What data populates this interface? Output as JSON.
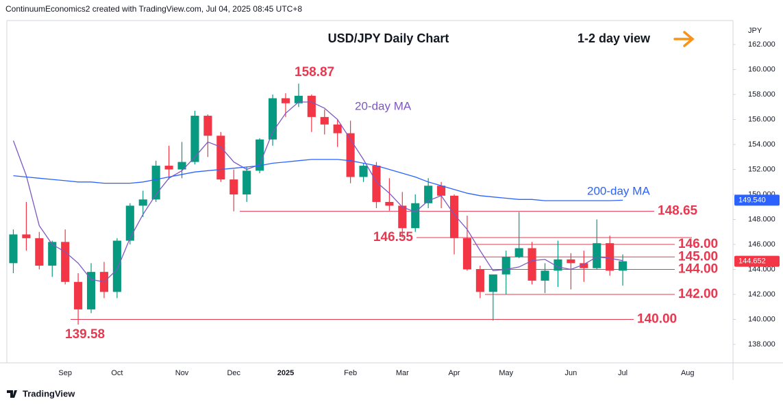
{
  "header": "ContinuumEconomics2 created with TradingView.com, Jul 04, 2025 08:45 UTC+8",
  "footer": "TradingView",
  "chart_data": {
    "type": "candlestick",
    "title": "USD/JPY Daily Chart",
    "subtitle": "1-2 day view",
    "y_axis_label": "JPY",
    "categories": [
      null,
      null,
      null,
      null,
      "Sep",
      null,
      null,
      null,
      "Oct",
      null,
      null,
      null,
      null,
      "Nov",
      null,
      null,
      null,
      "Dec",
      null,
      null,
      null,
      "2025",
      null,
      null,
      null,
      null,
      "Feb",
      null,
      null,
      null,
      "Mar",
      null,
      null,
      null,
      "Apr",
      null,
      null,
      null,
      "May",
      null,
      null,
      null,
      null,
      "Jun",
      null,
      null,
      null,
      "Jul",
      null,
      null,
      null,
      null,
      "Aug",
      null,
      null,
      null
    ],
    "open": [
      144.5,
      146.8,
      146.5,
      144.3,
      146.2,
      143.0,
      140.8,
      143.8,
      142.2,
      146.3,
      149.1,
      149.6,
      152.3,
      152.0,
      152.6,
      156.3,
      154.7,
      151.2,
      150.0,
      151.9,
      154.4,
      157.7,
      157.3,
      157.9,
      156.2,
      155.6,
      154.9,
      151.4,
      152.3,
      149.4,
      149.1,
      147.3,
      149.3,
      150.7,
      149.9,
      146.5,
      144.0,
      142.2,
      143.6,
      145.0,
      145.7,
      143.1,
      143.9,
      144.8,
      144.5,
      144.1,
      146.1,
      143.9,
      null,
      null,
      null,
      null,
      null,
      null,
      null,
      null
    ],
    "high": [
      147.2,
      149.4,
      147.0,
      146.3,
      147.2,
      143.7,
      144.5,
      144.6,
      146.5,
      149.3,
      150.3,
      152.7,
      153.9,
      154.2,
      156.7,
      156.4,
      155.0,
      152.0,
      152.2,
      154.5,
      158.0,
      158.1,
      158.87,
      158.0,
      156.8,
      156.0,
      155.9,
      152.5,
      152.6,
      151.3,
      150.2,
      150.0,
      151.3,
      151.0,
      150.0,
      148.3,
      144.3,
      143.5,
      145.5,
      148.6,
      146.2,
      144.5,
      146.3,
      145.3,
      145.5,
      148.0,
      146.7,
      145.2,
      null,
      null,
      null,
      null,
      null,
      null,
      null,
      null
    ],
    "low": [
      143.7,
      145.5,
      144.0,
      143.4,
      142.8,
      139.58,
      140.5,
      141.7,
      141.7,
      146.0,
      148.2,
      149.4,
      151.2,
      151.3,
      152.4,
      153.0,
      151.0,
      148.65,
      149.4,
      151.7,
      153.9,
      156.2,
      157.0,
      155.0,
      154.8,
      153.8,
      150.9,
      151.0,
      148.9,
      148.7,
      146.55,
      147.0,
      148.9,
      148.9,
      145.2,
      143.9,
      141.7,
      139.9,
      142.0,
      144.9,
      142.8,
      142.1,
      142.6,
      142.4,
      143.0,
      144.0,
      143.5,
      142.7,
      null,
      null,
      null,
      null,
      null,
      null,
      null,
      null
    ],
    "close": [
      146.8,
      146.5,
      144.3,
      146.2,
      143.0,
      140.8,
      143.8,
      142.2,
      146.3,
      149.1,
      149.6,
      152.3,
      152.0,
      152.6,
      156.3,
      154.7,
      151.2,
      150.0,
      151.9,
      154.4,
      157.7,
      157.3,
      157.9,
      156.2,
      155.6,
      154.9,
      151.4,
      152.3,
      149.4,
      149.1,
      147.3,
      149.3,
      150.7,
      149.9,
      146.5,
      144.0,
      142.2,
      143.6,
      145.0,
      145.7,
      143.1,
      143.9,
      144.8,
      144.5,
      144.1,
      146.1,
      143.9,
      144.652,
      null,
      null,
      null,
      null,
      null,
      null,
      null,
      null
    ],
    "up_color": "#089981",
    "down_color": "#f23645",
    "series": [
      {
        "name": "20-day MA",
        "color": "#7e57c2",
        "values": [
          154.3,
          151.5,
          147.5,
          146.0,
          145.4,
          144.5,
          143.2,
          143.0,
          144.0,
          146.5,
          148.4,
          150.0,
          151.3,
          151.9,
          153.0,
          154.2,
          153.8,
          152.6,
          152.0,
          152.4,
          155.0,
          156.5,
          157.4,
          157.4,
          156.9,
          156.0,
          154.4,
          152.8,
          151.0,
          150.1,
          149.0,
          148.6,
          149.5,
          149.9,
          148.4,
          147.2,
          145.5,
          143.9,
          144.0,
          144.2,
          144.7,
          144.8,
          144.2,
          144.0,
          144.4,
          145.0,
          144.9,
          144.7,
          null,
          null,
          null,
          null,
          null,
          null,
          null,
          null
        ]
      },
      {
        "name": "200-day MA",
        "color": "#2962ff",
        "values": [
          151.5,
          151.4,
          151.3,
          151.2,
          151.1,
          151.0,
          151.0,
          150.9,
          150.9,
          150.9,
          151.0,
          151.2,
          151.4,
          151.6,
          151.8,
          151.9,
          152.0,
          152.1,
          152.2,
          152.3,
          152.5,
          152.6,
          152.7,
          152.8,
          152.8,
          152.8,
          152.7,
          152.5,
          152.3,
          152.0,
          151.7,
          151.4,
          151.0,
          150.7,
          150.4,
          150.1,
          149.9,
          149.8,
          149.7,
          149.6,
          149.6,
          149.5,
          149.5,
          149.5,
          149.5,
          149.5,
          149.5,
          149.54,
          null,
          null,
          null,
          null,
          null,
          null,
          null,
          null
        ]
      }
    ],
    "levels": [
      {
        "value": 148.65,
        "label": "148.65"
      },
      {
        "value": 146.55,
        "label": "146.55"
      },
      {
        "value": 146,
        "label": "146.00"
      },
      {
        "value": 145,
        "label": "145.00"
      },
      {
        "value": 144,
        "label": "144.00"
      },
      {
        "value": 142,
        "label": "142.00"
      },
      {
        "value": 140,
        "label": "140.00"
      }
    ],
    "extremes": [
      158.87,
      139.58
    ],
    "price_markers": [
      {
        "value": 149.54,
        "label": "149.540"
      },
      144.652
    ],
    "ylim": [
      136.52,
      163.92
    ],
    "yticks": [
      {
        "value": 138,
        "label": "138.000"
      },
      {
        "value": 140,
        "label": "140.000"
      },
      {
        "value": 142,
        "label": "142.000"
      },
      {
        "value": 144,
        "label": "144.000"
      },
      {
        "value": 146,
        "label": "146.000"
      },
      {
        "value": 148,
        "label": "148.000"
      },
      {
        "value": 150,
        "label": "150.000"
      },
      {
        "value": 152,
        "label": "152.000"
      },
      {
        "value": 154,
        "label": "154.000"
      },
      {
        "value": 156,
        "label": "156.000"
      },
      {
        "value": 158,
        "label": "158.000"
      },
      {
        "value": 160,
        "label": "160.000"
      },
      {
        "value": 162,
        "label": "162.000"
      }
    ],
    "level_color": "#e53950"
  }
}
